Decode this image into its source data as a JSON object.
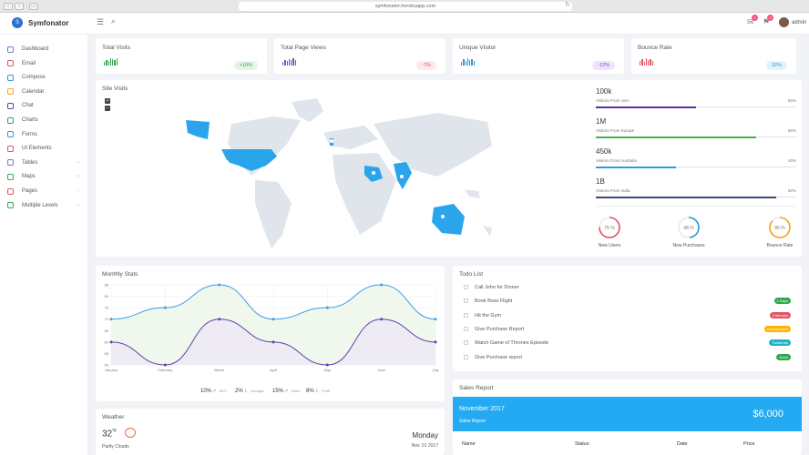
{
  "browser": {
    "url": "symfonator.herokuapp.com"
  },
  "header": {
    "brand": "Symfonator",
    "logo_letter": "S",
    "user": "admin",
    "notif_a": "1",
    "notif_b": "3"
  },
  "sidebar": {
    "items": [
      {
        "label": "Dashboard",
        "icon": "dashboard-icon",
        "chev": false
      },
      {
        "label": "Email",
        "icon": "email-icon",
        "chev": false
      },
      {
        "label": "Compose",
        "icon": "compose-icon",
        "chev": false
      },
      {
        "label": "Calendar",
        "icon": "calendar-icon",
        "chev": false
      },
      {
        "label": "Chat",
        "icon": "chat-icon",
        "chev": false
      },
      {
        "label": "Charts",
        "icon": "charts-icon",
        "chev": false
      },
      {
        "label": "Forms",
        "icon": "forms-icon",
        "chev": false
      },
      {
        "label": "UI Elements",
        "icon": "ui-elements-icon",
        "chev": false
      },
      {
        "label": "Tables",
        "icon": "tables-icon",
        "chev": true
      },
      {
        "label": "Maps",
        "icon": "maps-icon",
        "chev": true
      },
      {
        "label": "Pages",
        "icon": "pages-icon",
        "chev": true
      },
      {
        "label": "Multiple Levels",
        "icon": "multiple-levels-icon",
        "chev": true
      }
    ]
  },
  "stats": [
    {
      "title": "Total Visits",
      "change": "+10%",
      "color": "#2fa84f",
      "pill_bg": "#e4f5e8",
      "bars": [
        4,
        6,
        5,
        8,
        7,
        6,
        8
      ]
    },
    {
      "title": "Total Page Views",
      "change": "-7%",
      "color": "#7a4fc2",
      "pill_bg": "#fde8ea",
      "pill_fg": "#e25563",
      "bars": [
        4,
        6,
        5,
        7,
        6,
        8,
        6
      ]
    },
    {
      "title": "Unique Visitor",
      "change": "-12%",
      "color": "#2d9ad9",
      "pill_bg": "#efe4fb",
      "pill_fg": "#8b46d6",
      "bars": [
        4,
        7,
        5,
        8,
        6,
        7,
        5
      ]
    },
    {
      "title": "Bounce Rate",
      "change": "32%",
      "color": "#e25563",
      "pill_bg": "#e3f2fb",
      "pill_fg": "#2d9ad9",
      "bars": [
        5,
        7,
        4,
        8,
        6,
        7,
        5
      ]
    }
  ],
  "site_visits": {
    "title": "Site Visits",
    "zoom_in": "+",
    "zoom_out": "−",
    "regions": [
      {
        "value": "100k",
        "label": "Visitors From USA",
        "pct": "50%",
        "fill": 0.5,
        "color": "#5b2fa6"
      },
      {
        "value": "1M",
        "label": "Visitors From Europe",
        "pct": "80%",
        "fill": 0.8,
        "color": "#4caf50"
      },
      {
        "value": "450k",
        "label": "Visitors From Australia",
        "pct": "40%",
        "fill": 0.4,
        "color": "#2d9ad9"
      },
      {
        "value": "1B",
        "label": "Visitors From India",
        "pct": "90%",
        "fill": 0.9,
        "color": "#3b4a78"
      }
    ],
    "gauges": [
      {
        "value": "75 %",
        "label": "New Users",
        "pct": 0.75,
        "color": "#e25563"
      },
      {
        "value": "48 %",
        "label": "New Purchases",
        "pct": 0.48,
        "color": "#2d9ad9"
      },
      {
        "value": "86 %",
        "label": "Bounce Rate",
        "pct": 0.86,
        "color": "#ff9f1a"
      }
    ]
  },
  "monthly": {
    "title": "Monthly Stats",
    "legend": [
      {
        "value": "10%",
        "arrow": "↗",
        "arrow_color": "#2fa84f",
        "label": "SEO"
      },
      {
        "value": "2%",
        "arrow": "⇂",
        "arrow_color": "#e25563",
        "label": "Average"
      },
      {
        "value": "15%",
        "arrow": "↗",
        "arrow_color": "#2fa84f",
        "label": "Sales"
      },
      {
        "value": "8%",
        "arrow": "⇂",
        "arrow_color": "#e25563",
        "label": "Profit"
      }
    ]
  },
  "chart_data": {
    "type": "area",
    "categories": [
      "January",
      "February",
      "March",
      "April",
      "May",
      "June",
      "July"
    ],
    "ylim": [
      50,
      85
    ],
    "yticks": [
      "50",
      "55",
      "60",
      "65",
      "70",
      "75",
      "80",
      "85"
    ],
    "series": [
      {
        "values": [
          70,
          75,
          85,
          70,
          75,
          85,
          70
        ],
        "color": "#3b9ee6",
        "fill": "#eef7ec"
      },
      {
        "values": [
          60,
          50,
          70,
          60,
          50,
          70,
          60
        ],
        "color": "#5b3fa8",
        "fill": "#ede9f4"
      }
    ],
    "grid": true,
    "legend": "none"
  },
  "todo": {
    "title": "Todo List",
    "items": [
      {
        "text": "Call John for Dinner",
        "tag": "",
        "tag_color": ""
      },
      {
        "text": "Book Boss Flight",
        "tag": "2 Days",
        "tag_color": "#2fa84f"
      },
      {
        "text": "Hit the Gym",
        "tag": "3 Minutes",
        "tag_color": "#e25563"
      },
      {
        "text": "Give Purchase Report",
        "tag": "not important",
        "tag_color": "#ffb300"
      },
      {
        "text": "Watch Game of Thrones Episode",
        "tag": "Tomorrow",
        "tag_color": "#20b4c4"
      },
      {
        "text": "Give Purchase report",
        "tag": "Done",
        "tag_color": "#2fa84f"
      }
    ]
  },
  "weather": {
    "title": "Weather",
    "temp": "32",
    "unit": "°F",
    "desc": "Partly Clouds",
    "day": "Monday",
    "date": "Nov. 01 2017"
  },
  "sales": {
    "title": "Sales Report",
    "month": "November 2017",
    "sub": "Sales Report",
    "amount": "$6,000",
    "cols": [
      "Name",
      "Status",
      "Date",
      "Price"
    ]
  }
}
